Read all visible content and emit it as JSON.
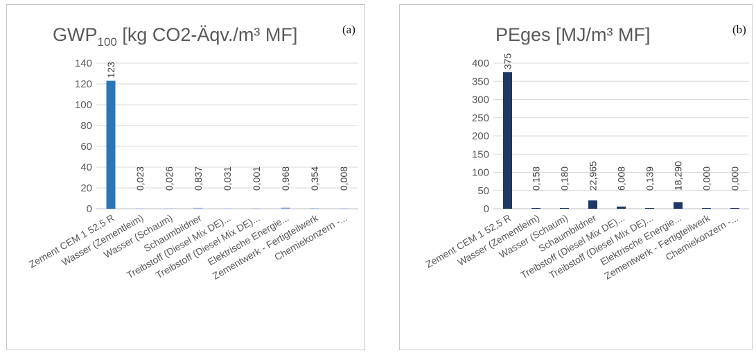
{
  "chart_data": [
    {
      "type": "bar",
      "title_main": "GWP",
      "title_sub": "100",
      "title_rest": " [kg CO2-Äqv./m³ MF]",
      "panel_label": "(a)",
      "categories": [
        "Zement CEM 1 52,5 R",
        "Wasser (Zementleim)",
        "Wasser (Schaum)",
        "Schaumbildner",
        "Treibstoff (Diesel Mix DE)...",
        "Treibstoff (Diesel Mix DE)...",
        "Elektrische Energie...",
        "Zementwerk - Fertigteilwerk",
        "Chemiekonzern -..."
      ],
      "values": [
        123,
        0.023,
        0.026,
        0.837,
        0.031,
        0.001,
        0.968,
        0.354,
        0.008
      ],
      "data_labels": [
        "123",
        "0,023",
        "0,026",
        "0,837",
        "0,031",
        "0,001",
        "0,968",
        "0,354",
        "0,008"
      ],
      "ylim": [
        0,
        140
      ],
      "yticks": [
        "0",
        "20",
        "40",
        "60",
        "80",
        "100",
        "120",
        "140"
      ],
      "grid": true,
      "colors": {
        "main": "#2e75b6",
        "small": [
          "#2e75b6",
          "#c5d3ee",
          "#c5d3ee",
          "#9fb5e5",
          "#c5d3ee",
          "#c5d3ee",
          "#7e9ad8",
          "#b4c6ea",
          "#c5d3ee"
        ]
      }
    },
    {
      "type": "bar",
      "title_main": "PEges [MJ/m³ MF]",
      "panel_label": "(b)",
      "categories": [
        "Zement CEM 1 52,5 R",
        "Wasser (Zementleim)",
        "Wasser (Schaum)",
        "Schaumbildner",
        "Treibstoff (Diesel Mix DE)...",
        "Treibstoff (Diesel Mix DE)...",
        "Elektrische Energie...",
        "Zementwerk - Fertigteilwerk",
        "Chemiekonzern -..."
      ],
      "values": [
        375,
        0.158,
        0.18,
        22.965,
        6.008,
        0.139,
        18.29,
        0.0,
        0.0
      ],
      "data_labels": [
        "375",
        "0,158",
        "0,180",
        "22,965",
        "6,008",
        "0,139",
        "18,290",
        "0,000",
        "0,000"
      ],
      "ylim": [
        0,
        400
      ],
      "yticks": [
        "0",
        "50",
        "100",
        "150",
        "200",
        "250",
        "300",
        "350",
        "400"
      ],
      "grid": true,
      "colors": {
        "main": "#1f3864",
        "small": [
          "#1f3864",
          "#1f3864",
          "#1f3864",
          "#1f3864",
          "#1f3864",
          "#1f3864",
          "#1f3864",
          "#1f3864",
          "#1f3864"
        ]
      }
    }
  ]
}
